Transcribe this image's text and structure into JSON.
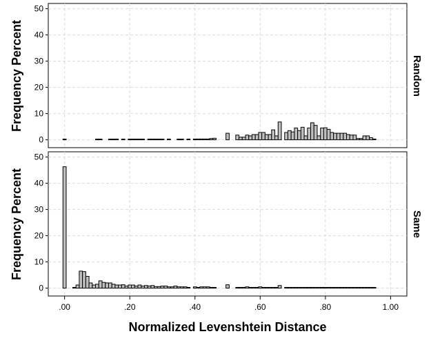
{
  "chart_data": {
    "type": "bar",
    "xlabel": "Normalized Levenshtein Distance",
    "ylabel": "Frequency Percent",
    "x_ticks": [
      ".00",
      ".20",
      ".40",
      ".60",
      ".80",
      "1.00"
    ],
    "x_tick_values": [
      0,
      0.2,
      0.4,
      0.6,
      0.8,
      1.0
    ],
    "xlim": [
      -0.05,
      1.05
    ],
    "ylim": [
      -3,
      52
    ],
    "y_ticks": [
      0,
      10,
      20,
      30,
      40,
      50
    ],
    "grid": true,
    "bar_color": "#bfbfbf",
    "panels": [
      {
        "facet": "Random",
        "x": [
          0.0,
          0.1,
          0.11,
          0.14,
          0.15,
          0.16,
          0.18,
          0.2,
          0.21,
          0.22,
          0.23,
          0.24,
          0.26,
          0.27,
          0.28,
          0.29,
          0.3,
          0.32,
          0.35,
          0.36,
          0.38,
          0.4,
          0.41,
          0.42,
          0.43,
          0.44,
          0.45,
          0.46,
          0.5,
          0.53,
          0.54,
          0.55,
          0.56,
          0.57,
          0.58,
          0.59,
          0.6,
          0.61,
          0.62,
          0.63,
          0.64,
          0.65,
          0.66,
          0.68,
          0.69,
          0.7,
          0.71,
          0.72,
          0.73,
          0.74,
          0.75,
          0.76,
          0.77,
          0.78,
          0.79,
          0.8,
          0.81,
          0.82,
          0.83,
          0.84,
          0.85,
          0.86,
          0.87,
          0.88,
          0.89,
          0.9,
          0.91,
          0.92,
          0.93,
          0.94,
          0.95
        ],
        "values": [
          0.1,
          0.1,
          0.1,
          0.1,
          0.1,
          0.1,
          0.1,
          0.1,
          0.1,
          0.1,
          0.1,
          0.1,
          0.1,
          0.1,
          0.1,
          0.1,
          0.1,
          0.1,
          0.1,
          0.1,
          0.2,
          0.3,
          0.3,
          0.3,
          0.3,
          0.3,
          0.5,
          0.6,
          2.5,
          1.8,
          1.0,
          1.0,
          1.8,
          1.5,
          2.0,
          2.0,
          2.8,
          2.8,
          2.0,
          2.0,
          3.8,
          1.5,
          6.8,
          2.8,
          3.5,
          3.0,
          4.5,
          3.5,
          4.8,
          1.5,
          4.5,
          6.5,
          5.5,
          1.5,
          4.5,
          4.6,
          4.0,
          2.8,
          2.5,
          2.5,
          2.5,
          2.5,
          2.0,
          1.8,
          1.8,
          0.5,
          0.5,
          1.5,
          1.5,
          0.8,
          0.3
        ]
      },
      {
        "facet": "Same",
        "x": [
          0.0,
          0.03,
          0.04,
          0.05,
          0.06,
          0.07,
          0.08,
          0.09,
          0.1,
          0.11,
          0.12,
          0.13,
          0.14,
          0.15,
          0.16,
          0.17,
          0.18,
          0.19,
          0.2,
          0.21,
          0.22,
          0.23,
          0.24,
          0.25,
          0.26,
          0.27,
          0.28,
          0.29,
          0.3,
          0.31,
          0.32,
          0.33,
          0.34,
          0.35,
          0.36,
          0.37,
          0.38,
          0.4,
          0.41,
          0.42,
          0.43,
          0.44,
          0.45,
          0.46,
          0.5,
          0.53,
          0.54,
          0.55,
          0.56,
          0.57,
          0.58,
          0.59,
          0.6,
          0.61,
          0.62,
          0.63,
          0.64,
          0.65,
          0.66,
          0.68,
          0.69,
          0.7,
          0.71,
          0.72,
          0.73,
          0.74,
          0.75,
          0.76,
          0.77,
          0.78,
          0.79,
          0.8,
          0.81,
          0.82,
          0.83,
          0.84,
          0.85,
          0.86,
          0.87,
          0.88,
          0.89,
          0.9,
          0.91,
          0.92,
          0.93,
          0.94,
          0.95
        ],
        "values": [
          46.3,
          0.3,
          1.2,
          6.5,
          6.3,
          4.5,
          2.0,
          1.2,
          1.5,
          2.8,
          2.2,
          2.0,
          2.0,
          1.5,
          1.2,
          1.2,
          1.3,
          0.8,
          1.2,
          1.2,
          0.8,
          1.2,
          0.8,
          1.0,
          0.8,
          1.0,
          0.6,
          0.6,
          0.8,
          0.8,
          0.5,
          0.5,
          0.8,
          0.5,
          0.5,
          0.5,
          0.3,
          0.5,
          0.3,
          0.5,
          0.5,
          0.5,
          0.3,
          0.3,
          1.3,
          0.3,
          0.3,
          0.3,
          0.5,
          0.3,
          0.3,
          0.3,
          0.5,
          0.3,
          0.3,
          0.3,
          0.3,
          0.3,
          1.0,
          0.3,
          0.3,
          0.3,
          0.3,
          0.3,
          0.3,
          0.3,
          0.3,
          0.3,
          0.3,
          0.3,
          0.3,
          0.3,
          0.3,
          0.3,
          0.3,
          0.3,
          0.3,
          0.3,
          0.3,
          0.3,
          0.3,
          0.3,
          0.3,
          0.3,
          0.3,
          0.3,
          0.3
        ]
      }
    ]
  }
}
